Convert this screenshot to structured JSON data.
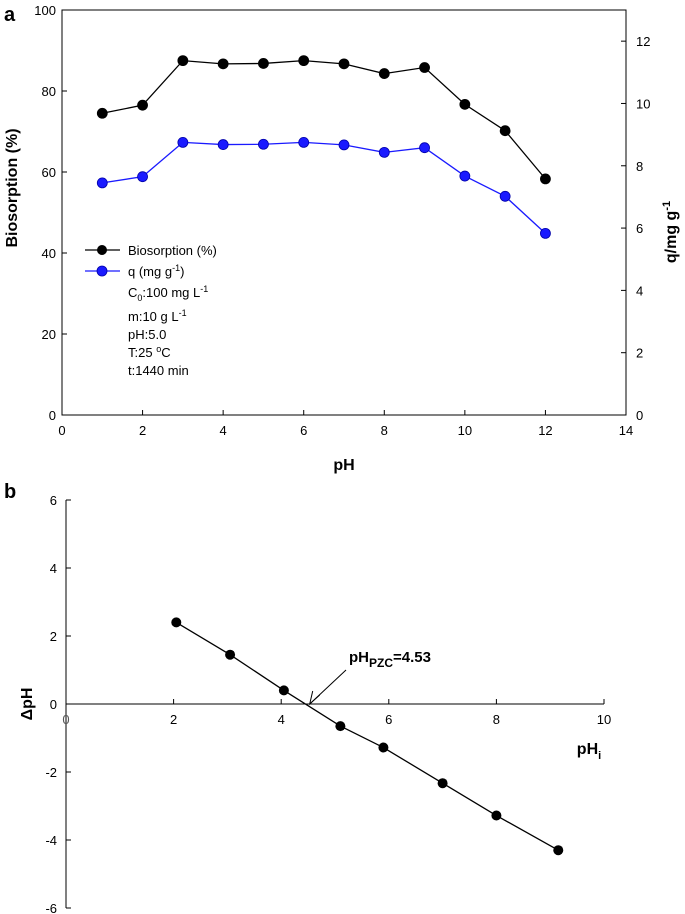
{
  "chart_data": [
    {
      "panel": "a",
      "type": "line",
      "xlabel": "pH",
      "ylabel": "Biosorption (%)",
      "ylabel_right": "q/mg g",
      "ylabel_right_sup": "-1",
      "xlim": [
        0,
        14
      ],
      "ylim": [
        0,
        100
      ],
      "ylim_right": [
        0,
        13
      ],
      "xticks": [
        "0",
        "2",
        "4",
        "6",
        "8",
        "10",
        "12",
        "14"
      ],
      "yticks": [
        "0",
        "20",
        "40",
        "60",
        "80",
        "100"
      ],
      "yticks_right": [
        "0",
        "2",
        "4",
        "6",
        "8",
        "10",
        "12"
      ],
      "x": [
        1,
        2,
        3,
        4,
        5,
        6,
        7,
        8,
        9,
        10,
        11,
        12
      ],
      "series": [
        {
          "name": "Biosorption (%)",
          "axis": "left",
          "color": "#000000",
          "values": [
            74.5,
            76.5,
            87.5,
            86.7,
            86.8,
            87.5,
            86.7,
            84.3,
            85.8,
            76.7,
            70.2,
            58.3
          ]
        },
        {
          "name": "q (mg g",
          "name_sup": "-1",
          "name_tail": ")",
          "axis": "right",
          "color": "#1a1aff",
          "values": [
            7.45,
            7.65,
            8.75,
            8.68,
            8.69,
            8.75,
            8.67,
            8.43,
            8.58,
            7.67,
            7.02,
            5.83
          ]
        }
      ],
      "legend_position": "left-middle",
      "annotations": {
        "c0": "C",
        "c0_sub": "0",
        "c0_value": ":100 mg L",
        "c0_sup": "-1",
        "m_value": "m:10 g L",
        "m_sup": "-1",
        "ph": "pH:5.0",
        "t_base": "T:25 ",
        "t_sup": "o",
        "t_unit": "C",
        "time": "t:1440 min"
      }
    },
    {
      "panel": "b",
      "type": "line",
      "xlabel": "pH",
      "xlabel_sub": "i",
      "ylabel": "ΔpH",
      "xlim": [
        0,
        10
      ],
      "ylim": [
        -6,
        6
      ],
      "xticks": [
        "0",
        "2",
        "4",
        "6",
        "8",
        "10"
      ],
      "yticks": [
        "-6",
        "-4",
        "-2",
        "0",
        "2",
        "4",
        "6"
      ],
      "x": [
        2.05,
        3.05,
        4.05,
        5.1,
        5.9,
        7.0,
        8.0,
        9.15
      ],
      "series": [
        {
          "name": "ΔpH",
          "color": "#000000",
          "values": [
            2.4,
            1.45,
            0.4,
            -0.65,
            -1.28,
            -2.33,
            -3.28,
            -4.3
          ]
        }
      ],
      "annotation": {
        "label": "pH",
        "label_sub": "PZC",
        "label_value": "=4.53",
        "x": 4.53,
        "y": 0
      }
    }
  ]
}
